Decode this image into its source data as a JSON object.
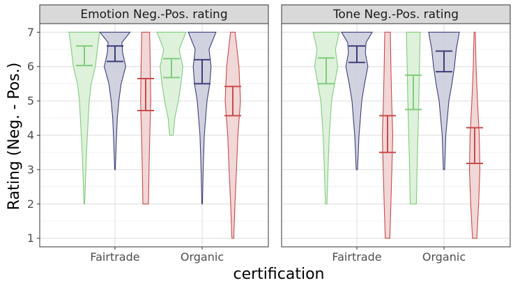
{
  "chart_data": {
    "type": "violin",
    "xlabel": "certification",
    "ylabel": "Rating (Neg. - Pos.)",
    "ylim": [
      0.75,
      7.25
    ],
    "yticks": [
      "1",
      "2",
      "3",
      "4",
      "5",
      "6",
      "7"
    ],
    "categories": [
      "Fairtrade",
      "Organic"
    ],
    "grid": true,
    "series_colors": [
      "#7fcc7a",
      "#3d3d7a",
      "#c94a4a"
    ],
    "series_fills": [
      "#d8efd5",
      "#c8cad9",
      "#eed0d0"
    ],
    "panels": [
      {
        "title": "Emotion Neg.-Pos. rating",
        "groups": [
          {
            "category": "Fairtrade",
            "violins": [
              {
                "range": [
                  2,
                  7
                ],
                "ci": [
                  6.03,
                  6.6
                ],
                "shape": [
                  [
                    2,
                    0.02
                  ],
                  [
                    2.5,
                    0.06
                  ],
                  [
                    3,
                    0.1
                  ],
                  [
                    3.5,
                    0.14
                  ],
                  [
                    4,
                    0.2
                  ],
                  [
                    4.5,
                    0.26
                  ],
                  [
                    5,
                    0.32
                  ],
                  [
                    5.5,
                    0.45
                  ],
                  [
                    6,
                    0.72
                  ],
                  [
                    6.5,
                    0.85
                  ],
                  [
                    7,
                    1.0
                  ]
                ]
              },
              {
                "range": [
                  3,
                  7
                ],
                "ci": [
                  6.15,
                  6.6
                ],
                "shape": [
                  [
                    3,
                    0.02
                  ],
                  [
                    3.5,
                    0.06
                  ],
                  [
                    4,
                    0.1
                  ],
                  [
                    4.5,
                    0.15
                  ],
                  [
                    5,
                    0.25
                  ],
                  [
                    5.5,
                    0.4
                  ],
                  [
                    6,
                    0.7
                  ],
                  [
                    6.4,
                    0.5
                  ],
                  [
                    6.7,
                    0.45
                  ],
                  [
                    7,
                    0.98
                  ]
                ]
              },
              {
                "range": [
                  2,
                  7
                ],
                "ci": [
                  4.72,
                  5.65
                ],
                "shape": [
                  [
                    2,
                    0.18
                  ],
                  [
                    3,
                    0.22
                  ],
                  [
                    4,
                    0.27
                  ],
                  [
                    5,
                    0.33
                  ],
                  [
                    6,
                    0.3
                  ],
                  [
                    7,
                    0.26
                  ]
                ]
              }
            ]
          },
          {
            "category": "Organic",
            "violins": [
              {
                "range": [
                  4,
                  7
                ],
                "ci": [
                  5.68,
                  6.23
                ],
                "shape": [
                  [
                    4,
                    0.12
                  ],
                  [
                    4.5,
                    0.22
                  ],
                  [
                    5,
                    0.45
                  ],
                  [
                    5.5,
                    0.62
                  ],
                  [
                    6,
                    0.74
                  ],
                  [
                    6.5,
                    0.5
                  ],
                  [
                    7,
                    0.95
                  ]
                ]
              },
              {
                "range": [
                  2,
                  7
                ],
                "ci": [
                  5.5,
                  6.2
                ],
                "shape": [
                  [
                    2,
                    0.02
                  ],
                  [
                    3,
                    0.07
                  ],
                  [
                    4,
                    0.14
                  ],
                  [
                    5,
                    0.32
                  ],
                  [
                    5.5,
                    0.5
                  ],
                  [
                    6,
                    0.58
                  ],
                  [
                    6.5,
                    0.45
                  ],
                  [
                    7,
                    0.9
                  ]
                ]
              },
              {
                "range": [
                  1,
                  7
                ],
                "ci": [
                  4.57,
                  5.42
                ],
                "shape": [
                  [
                    1,
                    0.06
                  ],
                  [
                    2,
                    0.14
                  ],
                  [
                    3,
                    0.24
                  ],
                  [
                    4,
                    0.33
                  ],
                  [
                    5,
                    0.5
                  ],
                  [
                    6,
                    0.4
                  ],
                  [
                    7,
                    0.15
                  ]
                ]
              }
            ]
          }
        ]
      },
      {
        "title": "Tone Neg.-Pos. rating",
        "groups": [
          {
            "category": "Fairtrade",
            "violins": [
              {
                "range": [
                  2,
                  7
                ],
                "ci": [
                  5.5,
                  6.25
                ],
                "shape": [
                  [
                    2,
                    0.05
                  ],
                  [
                    3,
                    0.12
                  ],
                  [
                    4,
                    0.2
                  ],
                  [
                    5,
                    0.35
                  ],
                  [
                    5.5,
                    0.55
                  ],
                  [
                    6,
                    0.75
                  ],
                  [
                    6.5,
                    0.6
                  ],
                  [
                    7,
                    0.85
                  ]
                ]
              },
              {
                "range": [
                  3,
                  7
                ],
                "ci": [
                  6.12,
                  6.6
                ],
                "shape": [
                  [
                    3,
                    0.04
                  ],
                  [
                    4,
                    0.14
                  ],
                  [
                    5,
                    0.32
                  ],
                  [
                    5.5,
                    0.5
                  ],
                  [
                    6,
                    0.72
                  ],
                  [
                    6.4,
                    0.55
                  ],
                  [
                    6.7,
                    0.6
                  ],
                  [
                    7,
                    1.0
                  ]
                ]
              },
              {
                "range": [
                  1,
                  7
                ],
                "ci": [
                  3.5,
                  4.57
                ],
                "shape": [
                  [
                    1,
                    0.15
                  ],
                  [
                    2,
                    0.22
                  ],
                  [
                    3,
                    0.28
                  ],
                  [
                    4,
                    0.34
                  ],
                  [
                    5,
                    0.27
                  ],
                  [
                    6,
                    0.22
                  ],
                  [
                    7,
                    0.18
                  ]
                ]
              }
            ]
          },
          {
            "category": "Organic",
            "violins": [
              {
                "range": [
                  2,
                  7
                ],
                "ci": [
                  4.75,
                  5.75
                ],
                "shape": [
                  [
                    2,
                    0.2
                  ],
                  [
                    3,
                    0.24
                  ],
                  [
                    4,
                    0.3
                  ],
                  [
                    5,
                    0.36
                  ],
                  [
                    6,
                    0.4
                  ],
                  [
                    7,
                    0.45
                  ]
                ]
              },
              {
                "range": [
                  3,
                  7
                ],
                "ci": [
                  5.85,
                  6.45
                ],
                "shape": [
                  [
                    3,
                    0.04
                  ],
                  [
                    4,
                    0.12
                  ],
                  [
                    5,
                    0.32
                  ],
                  [
                    5.5,
                    0.52
                  ],
                  [
                    6,
                    0.68
                  ],
                  [
                    6.5,
                    0.8
                  ],
                  [
                    7,
                    1.0
                  ]
                ]
              },
              {
                "range": [
                  1,
                  7
                ],
                "ci": [
                  3.18,
                  4.22
                ],
                "shape": [
                  [
                    1,
                    0.14
                  ],
                  [
                    2,
                    0.26
                  ],
                  [
                    3,
                    0.34
                  ],
                  [
                    4,
                    0.3
                  ],
                  [
                    5,
                    0.18
                  ],
                  [
                    6,
                    0.09
                  ],
                  [
                    7,
                    0.04
                  ]
                ]
              }
            ]
          }
        ]
      }
    ]
  }
}
